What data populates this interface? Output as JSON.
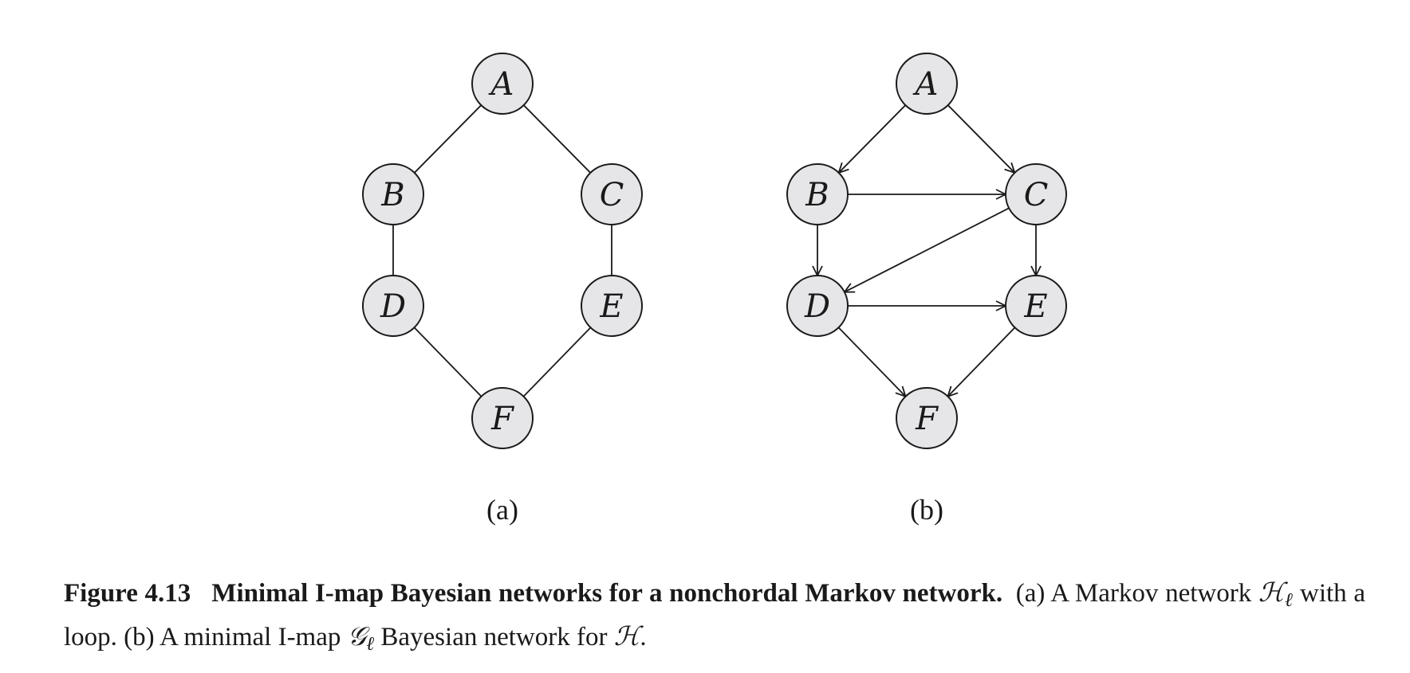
{
  "panels": [
    {
      "id": "a",
      "label": "(a)",
      "nodes": [
        {
          "id": "A",
          "label": "A"
        },
        {
          "id": "B",
          "label": "B"
        },
        {
          "id": "C",
          "label": "C"
        },
        {
          "id": "D",
          "label": "D"
        },
        {
          "id": "E",
          "label": "E"
        },
        {
          "id": "F",
          "label": "F"
        }
      ],
      "edges": [
        {
          "from": "A",
          "to": "B",
          "directed": false
        },
        {
          "from": "A",
          "to": "C",
          "directed": false
        },
        {
          "from": "B",
          "to": "D",
          "directed": false
        },
        {
          "from": "C",
          "to": "E",
          "directed": false
        },
        {
          "from": "D",
          "to": "F",
          "directed": false
        },
        {
          "from": "E",
          "to": "F",
          "directed": false
        }
      ]
    },
    {
      "id": "b",
      "label": "(b)",
      "nodes": [
        {
          "id": "A",
          "label": "A"
        },
        {
          "id": "B",
          "label": "B"
        },
        {
          "id": "C",
          "label": "C"
        },
        {
          "id": "D",
          "label": "D"
        },
        {
          "id": "E",
          "label": "E"
        },
        {
          "id": "F",
          "label": "F"
        }
      ],
      "edges": [
        {
          "from": "A",
          "to": "B",
          "directed": true
        },
        {
          "from": "A",
          "to": "C",
          "directed": true
        },
        {
          "from": "B",
          "to": "C",
          "directed": true
        },
        {
          "from": "B",
          "to": "D",
          "directed": true
        },
        {
          "from": "C",
          "to": "D",
          "directed": true
        },
        {
          "from": "C",
          "to": "E",
          "directed": true
        },
        {
          "from": "D",
          "to": "E",
          "directed": true
        },
        {
          "from": "D",
          "to": "F",
          "directed": true
        },
        {
          "from": "E",
          "to": "F",
          "directed": true
        }
      ]
    }
  ],
  "caption": {
    "figure_number": "Figure 4.13",
    "title": "Minimal I-map Bayesian networks for a nonchordal Markov network.",
    "text_1": "(a) A Markov network ",
    "sym_H": "ℋ",
    "sub_l": "ℓ",
    "text_2": " with a loop. (b) A minimal I-map ",
    "sym_G": "𝒢",
    "text_3": " Bayesian network for ",
    "text_4": "."
  }
}
